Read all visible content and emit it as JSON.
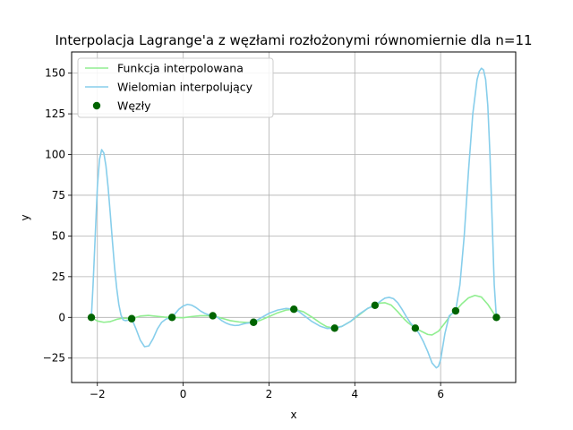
{
  "chart_data": {
    "type": "line",
    "title": "Interpolacja Lagrange'a z węzłami rozłożonymi równomiernie dla n=11",
    "xlabel": "x",
    "ylabel": "y",
    "xlim": [
      -2.6,
      7.75
    ],
    "ylim": [
      -40,
      163
    ],
    "xticks": [
      -2,
      0,
      2,
      4,
      6
    ],
    "xtick_labels": [
      "−2",
      "0",
      "2",
      "4",
      "6"
    ],
    "yticks": [
      -25,
      0,
      25,
      50,
      75,
      100,
      125,
      150
    ],
    "ytick_labels": [
      "−25",
      "0",
      "25",
      "50",
      "75",
      "100",
      "125",
      "150"
    ],
    "grid": true,
    "legend_position": "top-left",
    "series": [
      {
        "name": "Funkcja interpolowana",
        "color": "#90ee90",
        "x": [
          -2.14,
          -2.0,
          -1.85,
          -1.7,
          -1.55,
          -1.4,
          -1.2,
          -1.0,
          -0.8,
          -0.6,
          -0.4,
          -0.26,
          0.0,
          0.2,
          0.4,
          0.69,
          0.9,
          1.1,
          1.3,
          1.5,
          1.64,
          1.8,
          2.0,
          2.2,
          2.4,
          2.58,
          2.8,
          3.0,
          3.2,
          3.35,
          3.53,
          3.7,
          3.9,
          4.1,
          4.3,
          4.47,
          4.6,
          4.7,
          4.85,
          5.0,
          5.15,
          5.25,
          5.41,
          5.55,
          5.7,
          5.8,
          5.95,
          6.1,
          6.25,
          6.35,
          6.5,
          6.65,
          6.8,
          6.95,
          7.1,
          7.2,
          7.3
        ],
        "y": [
          0,
          -2.2,
          -3.0,
          -2.6,
          -1.2,
          -0.4,
          -0.8,
          0.8,
          1.2,
          0.6,
          0.1,
          0,
          -0.2,
          0.5,
          1.0,
          1.0,
          -0.5,
          -2.0,
          -2.8,
          -3.2,
          -3.0,
          -1.8,
          0.5,
          2.8,
          4.5,
          5.0,
          3.5,
          0.2,
          -3.5,
          -5.8,
          -6.6,
          -5.5,
          -2.5,
          1.5,
          5.5,
          7.4,
          8.8,
          9.0,
          7.5,
          3.5,
          -1.0,
          -3.5,
          -6.6,
          -8.5,
          -10.5,
          -10.8,
          -8.5,
          -3.5,
          2.0,
          4.0,
          8.5,
          12.0,
          13.5,
          12.5,
          8.0,
          4.0,
          0
        ]
      },
      {
        "name": "Wielomian interpolujący",
        "color": "#87ceeb",
        "x": [
          -2.14,
          -2.1,
          -2.05,
          -2.0,
          -1.95,
          -1.9,
          -1.85,
          -1.8,
          -1.75,
          -1.7,
          -1.65,
          -1.6,
          -1.55,
          -1.5,
          -1.45,
          -1.4,
          -1.35,
          -1.3,
          -1.25,
          -1.2,
          -1.1,
          -1.0,
          -0.9,
          -0.8,
          -0.7,
          -0.6,
          -0.5,
          -0.4,
          -0.26,
          -0.1,
          0.0,
          0.1,
          0.2,
          0.3,
          0.4,
          0.5,
          0.6,
          0.69,
          0.8,
          0.9,
          1.0,
          1.1,
          1.2,
          1.3,
          1.4,
          1.5,
          1.64,
          1.8,
          2.0,
          2.2,
          2.4,
          2.58,
          2.7,
          2.8,
          3.0,
          3.2,
          3.35,
          3.53,
          3.7,
          3.9,
          4.1,
          4.3,
          4.47,
          4.6,
          4.7,
          4.8,
          4.9,
          5.0,
          5.1,
          5.2,
          5.3,
          5.41,
          5.5,
          5.6,
          5.7,
          5.8,
          5.9,
          5.95,
          6.0,
          6.1,
          6.2,
          6.35,
          6.45,
          6.55,
          6.65,
          6.75,
          6.85,
          6.9,
          6.95,
          7.0,
          7.05,
          7.1,
          7.15,
          7.2,
          7.25,
          7.3
        ],
        "y": [
          0,
          20,
          50,
          80,
          97,
          103,
          101,
          93,
          80,
          64,
          47,
          31,
          18,
          8,
          1.5,
          -1.5,
          -2.0,
          -1.8,
          -1.4,
          -0.8,
          -7,
          -14,
          -18,
          -17.5,
          -13,
          -7,
          -3,
          -1,
          0,
          5,
          7,
          8,
          7.5,
          6,
          4,
          2.5,
          1.5,
          1.0,
          0,
          -2,
          -3.5,
          -4.5,
          -5,
          -4.8,
          -4,
          -3.5,
          -3.0,
          -0.5,
          2.5,
          4.5,
          5.5,
          5.0,
          3.5,
          1.5,
          -2.5,
          -5.5,
          -6.8,
          -6.6,
          -5.5,
          -2.5,
          2,
          5.5,
          7.4,
          10,
          11.8,
          12.3,
          11.5,
          9,
          5,
          0.5,
          -3.5,
          -6.6,
          -10,
          -15,
          -21,
          -28,
          -31,
          -30,
          -26,
          -10,
          1,
          4.0,
          20,
          50,
          90,
          125,
          146,
          151,
          153,
          152,
          146,
          130,
          100,
          60,
          20,
          0
        ]
      },
      {
        "name": "Węzły",
        "type": "scatter",
        "color": "#006400",
        "x": [
          -2.14,
          -1.2,
          -0.26,
          0.69,
          1.64,
          2.58,
          3.53,
          4.47,
          5.41,
          6.35,
          7.3
        ],
        "y": [
          0,
          -0.8,
          0,
          1.0,
          -3.0,
          5.0,
          -6.6,
          7.4,
          -6.6,
          4.0,
          0
        ]
      }
    ]
  }
}
